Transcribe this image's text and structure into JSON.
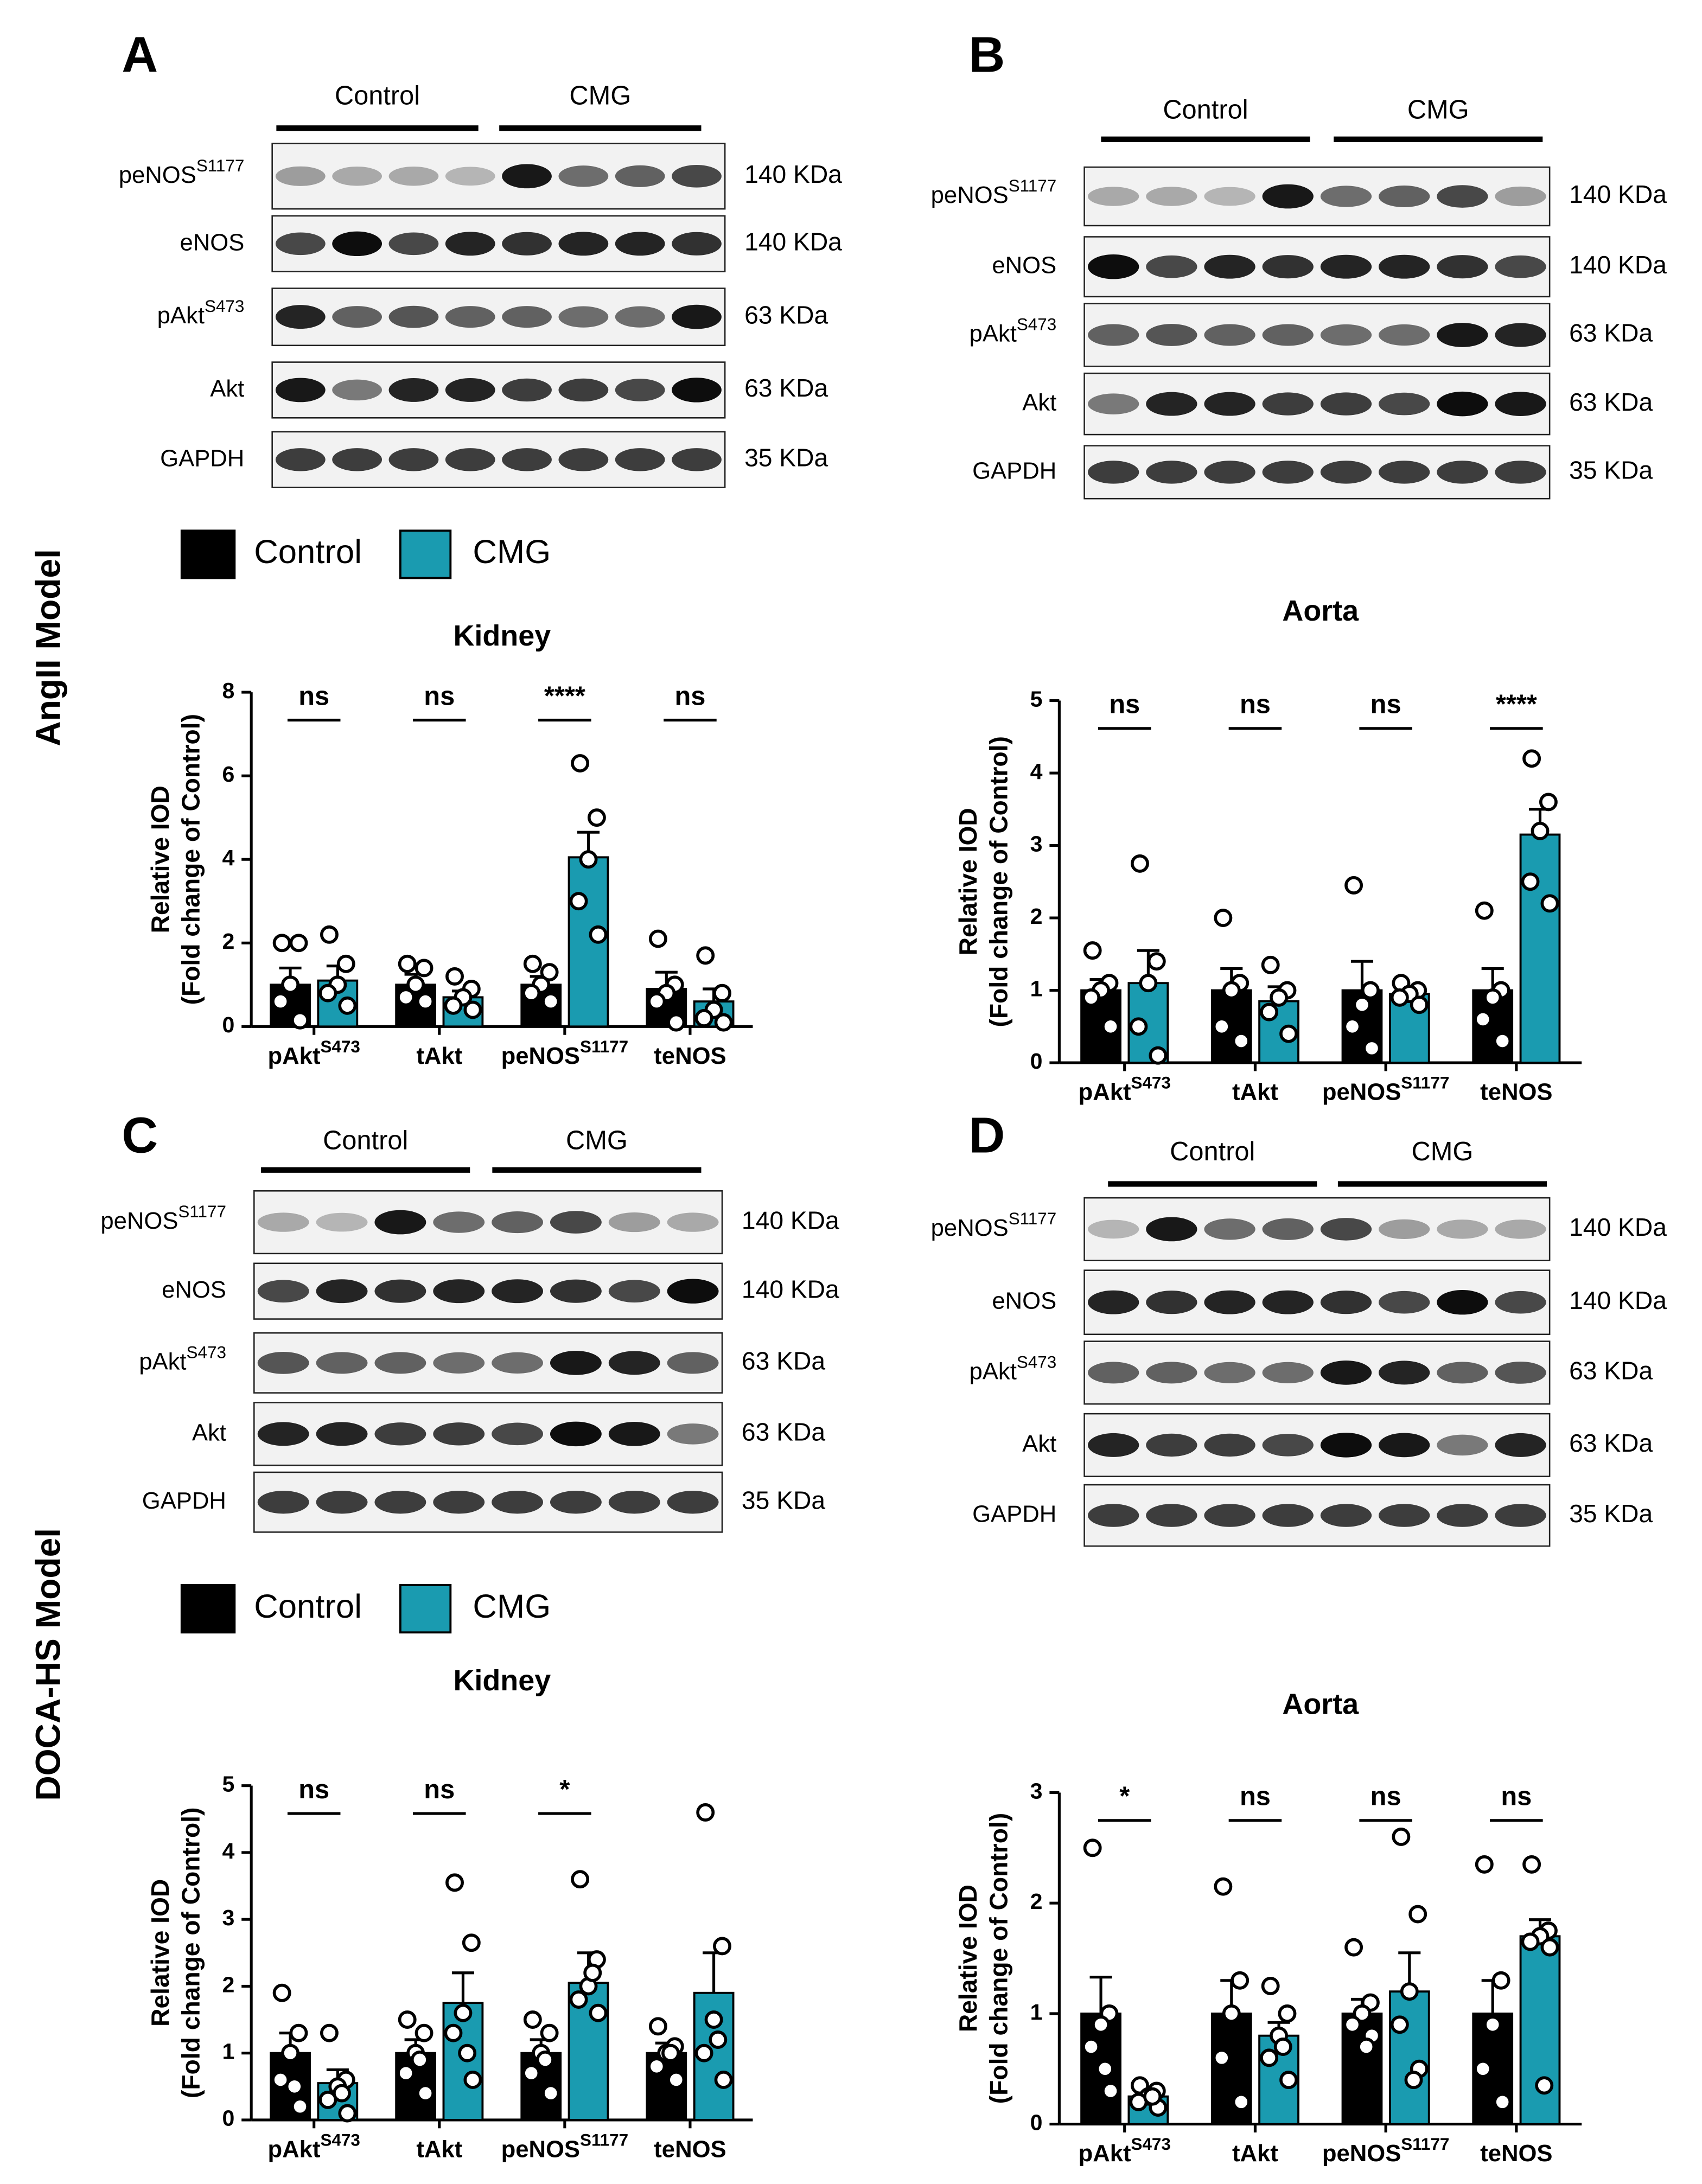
{
  "panel_letters": [
    "A",
    "B",
    "C",
    "D"
  ],
  "model_labels": [
    "AngII Model",
    "DOCA-HS Model"
  ],
  "blots": [
    {
      "groups": [
        "Control",
        "CMG"
      ],
      "rows": [
        {
          "protein": "peNOS",
          "sup": "S1177",
          "size": "140 KDa"
        },
        {
          "protein": "eNOS",
          "sup": null,
          "size": "140 KDa"
        },
        {
          "protein": "pAkt",
          "sup": "S473",
          "size": "63 KDa"
        },
        {
          "protein": "Akt",
          "sup": null,
          "size": "63 KDa"
        },
        {
          "protein": "GAPDH",
          "sup": null,
          "size": "35 KDa"
        }
      ]
    },
    {
      "groups": [
        "Control",
        "CMG"
      ],
      "rows": [
        {
          "protein": "peNOS",
          "sup": "S1177",
          "size": "140 KDa"
        },
        {
          "protein": "eNOS",
          "sup": null,
          "size": "140 KDa"
        },
        {
          "protein": "pAkt",
          "sup": "S473",
          "size": "63 KDa"
        },
        {
          "protein": "Akt",
          "sup": null,
          "size": "63 KDa"
        },
        {
          "protein": "GAPDH",
          "sup": null,
          "size": "35 KDa"
        }
      ]
    },
    {
      "groups": [
        "Control",
        "CMG"
      ],
      "rows": [
        {
          "protein": "peNOS",
          "sup": "S1177",
          "size": "140 KDa"
        },
        {
          "protein": "eNOS",
          "sup": null,
          "size": "140 KDa"
        },
        {
          "protein": "pAkt",
          "sup": "S473",
          "size": "63 KDa"
        },
        {
          "protein": "Akt",
          "sup": null,
          "size": "63 KDa"
        },
        {
          "protein": "GAPDH",
          "sup": null,
          "size": "35 KDa"
        }
      ]
    },
    {
      "groups": [
        "Control",
        "CMG"
      ],
      "rows": [
        {
          "protein": "peNOS",
          "sup": "S1177",
          "size": "140 KDa"
        },
        {
          "protein": "eNOS",
          "sup": null,
          "size": "140 KDa"
        },
        {
          "protein": "pAkt",
          "sup": "S473",
          "size": "63 KDa"
        },
        {
          "protein": "Akt",
          "sup": null,
          "size": "63 KDa"
        },
        {
          "protein": "GAPDH",
          "sup": null,
          "size": "35 KDa"
        }
      ]
    }
  ],
  "chart_data": [
    {
      "type": "bar",
      "title": "Kidney",
      "y_label": [
        "Relative IOD",
        "(Fold change of Control)"
      ],
      "legend": true,
      "categories": [
        "pAkt",
        "tAkt",
        "peNOS",
        "teNOS"
      ],
      "category_superscripts": [
        "S473",
        null,
        "S1177",
        null
      ],
      "significance": [
        "ns",
        "ns",
        "****",
        "ns"
      ],
      "ylim": [
        0,
        8
      ],
      "yticks": [
        0,
        2,
        4,
        6,
        8
      ],
      "series": [
        {
          "name": "Control",
          "color": "#000000",
          "values": [
            1.0,
            1.0,
            1.0,
            0.9
          ],
          "errors": [
            0.4,
            0.25,
            0.2,
            0.4
          ],
          "points": [
            [
              2.0,
              2.0,
              1.0,
              0.6,
              0.15
            ],
            [
              1.5,
              1.4,
              1.0,
              0.7,
              0.6
            ],
            [
              1.5,
              1.3,
              1.0,
              0.8,
              0.6
            ],
            [
              2.1,
              1.0,
              0.8,
              0.6,
              0.1
            ]
          ]
        },
        {
          "name": "CMG",
          "color": "#1a9bb0",
          "values": [
            1.1,
            0.7,
            4.05,
            0.6
          ],
          "errors": [
            0.35,
            0.15,
            0.6,
            0.3
          ],
          "points": [
            [
              2.2,
              1.5,
              1.0,
              0.8,
              0.5
            ],
            [
              1.2,
              0.9,
              0.7,
              0.5,
              0.4
            ],
            [
              6.3,
              5.0,
              4.0,
              3.0,
              2.2
            ],
            [
              1.7,
              0.8,
              0.4,
              0.2,
              0.1
            ]
          ]
        }
      ]
    },
    {
      "type": "bar",
      "title": "Aorta",
      "y_label": [
        "Relative IOD",
        "(Fold change of Control)"
      ],
      "legend": false,
      "categories": [
        "pAkt",
        "tAkt",
        "peNOS",
        "teNOS"
      ],
      "category_superscripts": [
        "S473",
        null,
        "S1177",
        null
      ],
      "significance": [
        "ns",
        "ns",
        "ns",
        "****"
      ],
      "ylim": [
        0,
        5
      ],
      "yticks": [
        0,
        1,
        2,
        3,
        4,
        5
      ],
      "series": [
        {
          "name": "Control",
          "color": "#000000",
          "values": [
            1.0,
            1.0,
            1.0,
            1.0
          ],
          "errors": [
            0.15,
            0.3,
            0.4,
            0.3
          ],
          "points": [
            [
              1.55,
              1.1,
              1.0,
              0.9,
              0.5
            ],
            [
              2.0,
              1.1,
              1.0,
              0.5,
              0.3
            ],
            [
              2.45,
              1.0,
              0.8,
              0.5,
              0.2
            ],
            [
              2.1,
              1.0,
              0.9,
              0.6,
              0.3
            ]
          ]
        },
        {
          "name": "CMG",
          "color": "#1a9bb0",
          "values": [
            1.1,
            0.85,
            0.95,
            3.15
          ],
          "errors": [
            0.45,
            0.2,
            0.1,
            0.35
          ],
          "points": [
            [
              2.75,
              1.4,
              1.1,
              0.5,
              0.1
            ],
            [
              1.35,
              1.0,
              0.9,
              0.7,
              0.4
            ],
            [
              1.1,
              1.0,
              0.95,
              0.9,
              0.8
            ],
            [
              4.2,
              3.6,
              3.2,
              2.5,
              2.2
            ]
          ]
        }
      ]
    },
    {
      "type": "bar",
      "title": "Kidney",
      "y_label": [
        "Relative IOD",
        "(Fold change of Control)"
      ],
      "legend": true,
      "categories": [
        "pAkt",
        "tAkt",
        "peNOS",
        "teNOS"
      ],
      "category_superscripts": [
        "S473",
        null,
        "S1177",
        null
      ],
      "significance": [
        "ns",
        "ns",
        "*",
        null
      ],
      "ylim": [
        0,
        5
      ],
      "yticks": [
        0,
        1,
        2,
        3,
        4,
        5
      ],
      "series": [
        {
          "name": "Control",
          "color": "#000000",
          "values": [
            1.0,
            1.0,
            1.0,
            1.0
          ],
          "errors": [
            0.3,
            0.2,
            0.2,
            0.15
          ],
          "points": [
            [
              1.9,
              1.3,
              1.0,
              0.6,
              0.2,
              0.5
            ],
            [
              1.5,
              1.3,
              1.0,
              0.7,
              0.4,
              0.9
            ],
            [
              1.5,
              1.3,
              1.0,
              0.7,
              0.4,
              0.9
            ],
            [
              1.4,
              1.1,
              1.0,
              0.8,
              0.6,
              1.0
            ]
          ]
        },
        {
          "name": "CMG",
          "color": "#1a9bb0",
          "values": [
            0.55,
            1.75,
            2.05,
            1.9
          ],
          "errors": [
            0.2,
            0.45,
            0.45,
            0.6
          ],
          "points": [
            [
              1.3,
              0.6,
              0.5,
              0.3,
              0.1,
              0.4
            ],
            [
              3.55,
              2.65,
              1.6,
              1.3,
              0.6,
              1.0
            ],
            [
              3.6,
              2.4,
              2.0,
              1.8,
              1.6,
              2.2
            ],
            [
              4.6,
              2.6,
              1.5,
              1.0,
              0.6,
              1.2
            ]
          ]
        }
      ]
    },
    {
      "type": "bar",
      "title": "Aorta",
      "y_label": [
        "Relative IOD",
        "(Fold change of Control)"
      ],
      "legend": false,
      "categories": [
        "pAkt",
        "tAkt",
        "peNOS",
        "teNOS"
      ],
      "category_superscripts": [
        "S473",
        null,
        "S1177",
        null
      ],
      "significance": [
        "*",
        "ns",
        "ns",
        "ns"
      ],
      "ylim": [
        0,
        3
      ],
      "yticks": [
        0,
        1,
        2,
        3
      ],
      "series": [
        {
          "name": "Control",
          "color": "#000000",
          "values": [
            1.0,
            1.0,
            1.0,
            1.0
          ],
          "errors": [
            0.33,
            0.3,
            0.13,
            0.3
          ],
          "points": [
            [
              2.5,
              1.0,
              0.9,
              0.7,
              0.3,
              0.5
            ],
            [
              2.15,
              1.3,
              1.0,
              0.6,
              0.2
            ],
            [
              1.6,
              1.1,
              1.0,
              0.9,
              0.8,
              0.7
            ],
            [
              2.35,
              1.3,
              0.9,
              0.5,
              0.2
            ]
          ]
        },
        {
          "name": "CMG",
          "color": "#1a9bb0",
          "values": [
            0.25,
            0.8,
            1.2,
            1.7
          ],
          "errors": [
            0.05,
            0.12,
            0.35,
            0.15
          ],
          "points": [
            [
              0.35,
              0.3,
              0.25,
              0.2,
              0.15,
              0.25
            ],
            [
              1.25,
              1.0,
              0.8,
              0.6,
              0.4,
              0.7
            ],
            [
              2.6,
              1.9,
              1.2,
              0.9,
              0.5,
              0.4
            ],
            [
              2.35,
              1.75,
              1.7,
              1.65,
              1.6,
              0.35
            ]
          ]
        }
      ]
    }
  ]
}
